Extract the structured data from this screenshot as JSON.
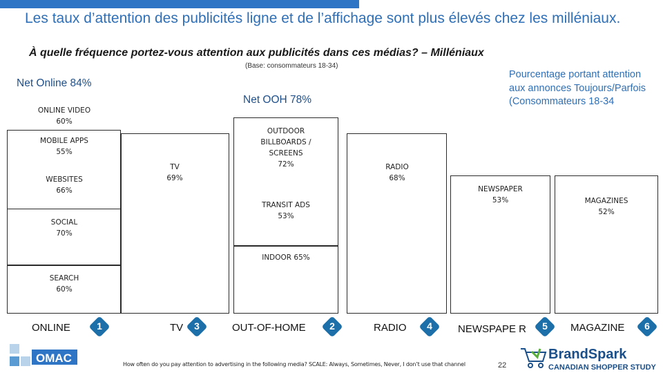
{
  "header": {
    "title": "Les taux d’attention des publicités ligne et de l’affichage sont plus élevés chez les milléniaux.",
    "subtitle": "À quelle fréquence portez-vous attention aux publicités dans ces médias? – Milléniaux",
    "base": "(Base: consommateurs 18-34)",
    "legend_note": "Pourcentage portant attention aux annonces Toujours/Parfois (Consommateurs 18-34"
  },
  "nets": {
    "online": "Net Online 84%",
    "ooh": "Net OOH 78%"
  },
  "online_items": [
    {
      "name": "ONLINE VIDEO",
      "value": "60%"
    },
    {
      "name": "MOBILE APPS",
      "value": "55%"
    },
    {
      "name": "WEBSITES",
      "value": "66%"
    },
    {
      "name": "SOCIAL",
      "value": "70%"
    },
    {
      "name": "SEARCH",
      "value": "60%"
    }
  ],
  "tv": {
    "name": "TV",
    "value": "69%"
  },
  "ooh_items": [
    {
      "name": "OUTDOOR BILLBOARDS / SCREENS",
      "value": "72%"
    },
    {
      "name": "TRANSIT ADS",
      "value": "53%"
    },
    {
      "name": "INDOOR 65%"
    }
  ],
  "radio": {
    "name": "RADIO",
    "value": "68%"
  },
  "newspaper": {
    "name": "NEWSPAPER",
    "value": "53%"
  },
  "magazines": {
    "name": "MAGAZINES",
    "value": "52%"
  },
  "categories": [
    {
      "label": "ONLINE",
      "rank": "1"
    },
    {
      "label": "TV",
      "rank": "3"
    },
    {
      "label": "OUT-OF-HOME",
      "rank": "2"
    },
    {
      "label": "RADIO",
      "rank": "4"
    },
    {
      "label": "NEWSPAPE R",
      "rank": "5"
    },
    {
      "label": "MAGAZINE",
      "rank": "6"
    }
  ],
  "footer": {
    "question": "How often do you pay attention to advertising in the following media? SCALE: Always, Sometimes, Never, I don’t use that channel",
    "page": "22"
  },
  "logos": {
    "omac": "OMAC",
    "brandspark": "BrandSpark",
    "brandspark_tagline": "CANADIAN SHOPPER STUDY"
  },
  "colors": {
    "accent": "#2e75c6",
    "title": "#2e6fb7",
    "rank_badge": "#1c6fa8",
    "brandspark": "#1b4f8a"
  }
}
